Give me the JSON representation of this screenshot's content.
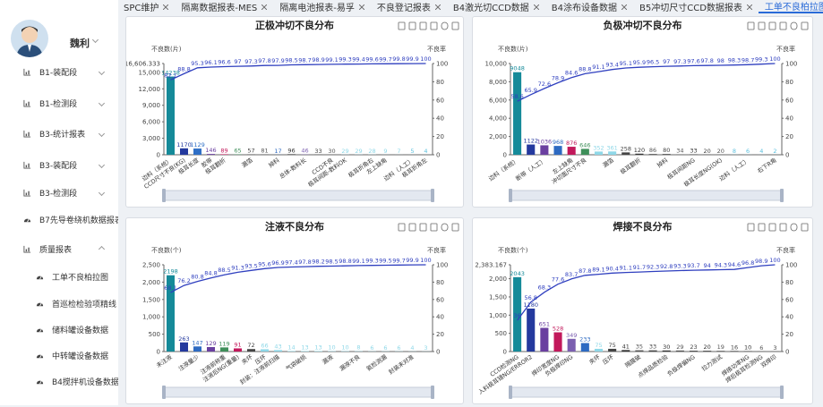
{
  "tabs": [
    "SPC维护",
    "隔离数据报表-MES",
    "隔离电池报表-易孚",
    "不良登记报表",
    "B4激光切CCD数据",
    "B4涂布设备数据",
    "B5冲切尺寸CCD数据报表",
    "工单不良柏拉图"
  ],
  "user": {
    "name": "魏利"
  },
  "menu": [
    "B1-装配段",
    "B1-检测段",
    "B3-统计报表",
    "B3-装配段",
    "B3-检测段",
    "B7先导卷绕机数据报表",
    "质量报表",
    "工单不良柏拉图",
    "首巡检检验项精线",
    "储料罐设备数据",
    "中转罐设备数据",
    "B4搅拌机设备数据"
  ],
  "chart_data": [
    {
      "type": "bar",
      "title": "正极冲切不良分布",
      "y_label": "不良数(片)",
      "y2_label": "不良率",
      "categories": [
        "边料（系统）",
        "CCD尺寸不良(KG)",
        "极耳长度",
        "胶带",
        "极耳翻折",
        null,
        "漏箔",
        null,
        "掉料",
        null,
        "总体-数料长",
        null,
        "CCD不良",
        "极耳间距-数料OK",
        null,
        "极耳折角右",
        "左上缺角",
        null,
        "边料（人工）",
        "极耳折角左"
      ],
      "colors": [
        "#158a99",
        "#24399e",
        "#2f6fc6",
        "#6a3fa0",
        "#c2185b",
        "#3f8f5a",
        "#444444",
        "#555555",
        "#2d6ac2",
        "#333333",
        "#7b5fb0",
        "#444444",
        "#555555",
        "#8fd8e8",
        "#8fd8e8",
        "#8fd8e8",
        "#8fd8e8",
        "#8fd8e8",
        "#5bc0de",
        "#5bc0de"
      ],
      "series": [
        {
          "values": [
            14238,
            1170,
            1129,
            146,
            89,
            65,
            57,
            81,
            17,
            96,
            46,
            33,
            30,
            29,
            29,
            28,
            9,
            7,
            5,
            4
          ]
        },
        {
          "axis": "y2",
          "color": "#2f3fbf",
          "values": [
            82.1,
            88.8,
            95.3,
            96.1,
            96.6,
            97.0,
            97.3,
            97.8,
            97.9,
            98.5,
            98.7,
            98.9,
            99.1,
            99.3,
            99.4,
            99.6,
            99.7,
            99.8,
            99.9,
            100
          ]
        }
      ],
      "ylim": [
        0,
        16606.333
      ],
      "yticks": [
        0,
        {
          "value": 3000,
          "label": "3,000"
        },
        {
          "value": 6000,
          "label": "6,000"
        },
        {
          "value": 9000,
          "label": "9,000"
        },
        {
          "value": 12000,
          "label": "12,000"
        },
        {
          "value": 15000,
          "label": "15,000"
        },
        {
          "value": 16606.333,
          "label": "16,606.333"
        }
      ],
      "y2lim": [
        0,
        100
      ],
      "y2ticks": [
        0,
        20,
        40,
        60,
        80,
        100
      ]
    },
    {
      "type": "bar",
      "title": "负极冲切不良分布",
      "y_label": "不良数(片)",
      "y2_label": "不良率",
      "categories": [
        "边料（系统）",
        null,
        "断带（人工）",
        null,
        "左上缺角",
        "冲切面尺寸不良",
        null,
        "漏箔",
        null,
        "极耳翻折",
        null,
        "掉料",
        null,
        "极耳间距NG",
        null,
        "极耳长度NG(OK)",
        null,
        "边料（人工）",
        null,
        "右下R角"
      ],
      "colors": [
        "#158a99",
        "#24399e",
        "#6a3fa0",
        "#2d6ac2",
        "#c2185b",
        "#3f8f5a",
        "#8fd8e8",
        "#8fd8e8",
        "#444444",
        "#333333",
        "#555555",
        "#444444",
        "#555555",
        "#333333",
        "#444444",
        "#555555",
        "#5bc0de",
        "#5bc0de",
        "#5bc0de",
        "#5bc0de"
      ],
      "series": [
        {
          "values": [
            9048,
            1122,
            1036,
            968,
            876,
            646,
            352,
            361,
            258,
            120,
            86,
            80,
            34,
            33,
            20,
            20,
            8,
            6,
            4,
            2
          ]
        },
        {
          "axis": "y2",
          "color": "#2f3fbf",
          "values": [
            58.6,
            65.9,
            72.6,
            78.9,
            84.6,
            88.8,
            91.1,
            93.4,
            95.1,
            95.9,
            96.5,
            97.0,
            97.3,
            97.6,
            97.8,
            98.0,
            98.3,
            98.7,
            99.3,
            100
          ]
        }
      ],
      "ylim": [
        0,
        10000
      ],
      "yticks": [
        0,
        {
          "value": 2000,
          "label": "2,000"
        },
        {
          "value": 4000,
          "label": "4,000"
        },
        {
          "value": 6000,
          "label": "6,000"
        },
        {
          "value": 8000,
          "label": "8,000"
        },
        {
          "value": 10000,
          "label": "10,000"
        }
      ],
      "y2lim": [
        0,
        100
      ],
      "y2ticks": [
        0,
        20,
        40,
        60,
        80,
        100
      ]
    },
    {
      "type": "bar",
      "title": "注液不良分布",
      "y_label": "不良数(个)",
      "y2_label": "不良率",
      "categories": [
        "未注液",
        null,
        "注液量少",
        null,
        "注液前称重",
        "注液后NG(重量)",
        "夹坏",
        "压坏",
        "封装：注液前扫描",
        null,
        "气袋破损",
        null,
        "漏液",
        null,
        "漏液不良",
        null,
        "氦检测漏",
        null,
        "封装未对准",
        null
      ],
      "colors": [
        "#158a99",
        "#24399e",
        "#2d6ac2",
        "#6a3fa0",
        "#3f8f5a",
        "#c2185b",
        "#444444",
        "#8fd8e8",
        "#8fd8e8",
        "#8fd8e8",
        "#8fd8e8",
        "#8fd8e8",
        "#8fd8e8",
        "#8fd8e8",
        "#8fd8e8",
        "#8fd8e8",
        "#8fd8e8",
        "#8fd8e8",
        "#8fd8e8",
        "#8fd8e8"
      ],
      "series": [
        {
          "values": [
            2198,
            263,
            147,
            129,
            119,
            91,
            72,
            66,
            43,
            14,
            13,
            13,
            10,
            10,
            8,
            6,
            6,
            6,
            4,
            3
          ]
        },
        {
          "axis": "y2",
          "color": "#2f3fbf",
          "values": [
            68.1,
            76.2,
            80.8,
            84.8,
            88.5,
            91.3,
            93.5,
            95.6,
            96.9,
            97.4,
            97.8,
            98.2,
            98.5,
            98.8,
            99.1,
            99.3,
            99.5,
            99.7,
            99.9,
            100
          ]
        }
      ],
      "ylim": [
        0,
        2500
      ],
      "yticks": [
        0,
        500,
        {
          "value": 1000,
          "label": "1,000"
        },
        {
          "value": 1500,
          "label": "1,500"
        },
        {
          "value": 2000,
          "label": "2,000"
        },
        {
          "value": 2500,
          "label": "2,500"
        }
      ],
      "y2lim": [
        0,
        100
      ],
      "y2ticks": [
        0,
        20,
        40,
        60,
        80,
        100
      ]
    },
    {
      "type": "bar",
      "title": "焊接不良分布",
      "y_label": "不良数(个)",
      "y2_label": "不良率",
      "categories": [
        "CCD检测NG",
        "入料极耳错NG/ERROR2",
        null,
        "焊印宽度NG",
        "负极焊印NG",
        null,
        "夹坏",
        "压坏",
        null,
        "隔膜破",
        null,
        "点焊品质检验",
        null,
        "负极焊偏NG",
        null,
        "拉力测试",
        null,
        "焊接功率NG",
        "焊后极耳检测NG",
        "双焊印"
      ],
      "colors": [
        "#158a99",
        "#24399e",
        "#6a3fa0",
        "#c2185b",
        "#7b5fb0",
        "#2d6ac2",
        "#8fd8e8",
        "#444444",
        "#333333",
        "#555555",
        "#444444",
        "#333333",
        "#555555",
        "#444444",
        "#333333",
        "#555555",
        "#444444",
        "#333333",
        "#555555",
        "#444444"
      ],
      "series": [
        {
          "values": [
            2043,
            1180,
            651,
            528,
            349,
            233,
            75,
            75,
            41,
            35,
            33,
            30,
            29,
            23,
            20,
            19,
            16,
            10,
            6,
            3
          ]
        },
        {
          "axis": "y2",
          "color": "#2f3fbf",
          "values": [
            36.0,
            56.8,
            68.3,
            77.6,
            83.7,
            87.8,
            89.1,
            90.4,
            91.1,
            91.7,
            92.3,
            92.8,
            93.3,
            93.7,
            94.0,
            94.3,
            94.6,
            96.8,
            98.9,
            100
          ]
        }
      ],
      "ylim": [
        0,
        2383.167
      ],
      "yticks": [
        0,
        500,
        {
          "value": 1000,
          "label": "1,000"
        },
        {
          "value": 1500,
          "label": "1,500"
        },
        {
          "value": 2000,
          "label": "2,000"
        },
        {
          "value": 2383.167,
          "label": "2,383.167"
        }
      ],
      "y2lim": [
        0,
        100
      ],
      "y2ticks": [
        0,
        20,
        40,
        60,
        80,
        100
      ]
    }
  ]
}
